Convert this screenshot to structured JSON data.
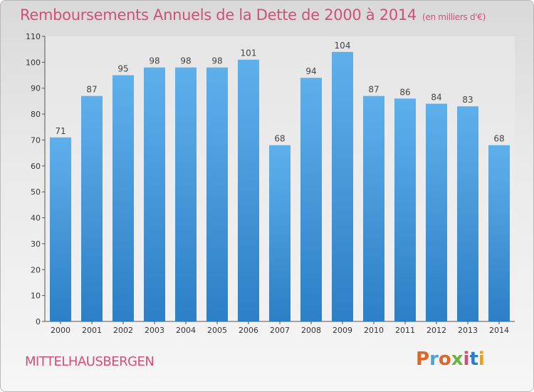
{
  "chart_data": {
    "type": "bar",
    "title": "Remboursements Annuels de la Dette de 2000 à 2014",
    "unit_note": "(en milliers d'€)",
    "categories": [
      "2000",
      "2001",
      "2002",
      "2003",
      "2004",
      "2005",
      "2006",
      "2007",
      "2008",
      "2009",
      "2010",
      "2011",
      "2012",
      "2013",
      "2014"
    ],
    "values": [
      71,
      87,
      95,
      98,
      98,
      98,
      101,
      68,
      94,
      104,
      87,
      86,
      84,
      83,
      68
    ],
    "ylim": [
      0,
      110
    ],
    "yticks": [
      0,
      10,
      20,
      30,
      40,
      50,
      60,
      70,
      80,
      90,
      100,
      110
    ],
    "grid": false,
    "bar_color": "#4b9de0"
  },
  "footer": {
    "city": "MITTELHAUSBERGEN",
    "logo_text": "Proxiti",
    "logo_colors": [
      "#e0652a",
      "#4aa3d8",
      "#e0652a",
      "#6bb43f",
      "#d24f77",
      "#2a7fc2",
      "#e8a020"
    ]
  }
}
